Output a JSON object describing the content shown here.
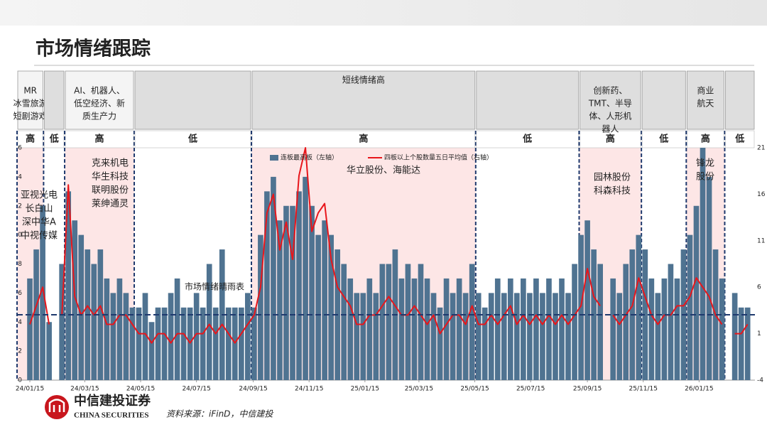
{
  "chart_data": {
    "type": "combo",
    "title": "市场情绪跟踪",
    "xlim": [
      "2024-01-01",
      "2026-03-17"
    ],
    "xticks": [
      {
        "value": "2024-01-15",
        "label": "24/01/15"
      },
      {
        "value": "2024-03-15",
        "label": "24/03/15"
      },
      {
        "value": "2024-05-15",
        "label": "24/05/15"
      },
      {
        "value": "2024-07-15",
        "label": "24/07/15"
      },
      {
        "value": "2024-09-15",
        "label": "24/09/15"
      },
      {
        "value": "2024-11-15",
        "label": "24/11/15"
      },
      {
        "value": "2025-01-15",
        "label": "25/01/15"
      },
      {
        "value": "2025-03-15",
        "label": "25/03/15"
      },
      {
        "value": "2025-05-15",
        "label": "25/05/15"
      },
      {
        "value": "2025-07-15",
        "label": "25/07/15"
      },
      {
        "value": "2025-09-15",
        "label": "25/09/15"
      },
      {
        "value": "2025-11-15",
        "label": "25/11/15"
      },
      {
        "value": "2026-01-15",
        "label": "26/01/15"
      }
    ],
    "ylim": [
      0,
      16
    ],
    "yticks": [
      0,
      2,
      4,
      6,
      8,
      10,
      12,
      14,
      16
    ],
    "y2lim": [
      -4,
      21
    ],
    "y2ticks": [
      -4,
      1,
      6,
      11,
      16,
      21
    ],
    "x": [
      "2024-01-15",
      "2024-01-22",
      "2024-01-29",
      "2024-02-05",
      "2024-02-12",
      "2024-02-19",
      "2024-02-26",
      "2024-03-04",
      "2024-03-11",
      "2024-03-18",
      "2024-03-25",
      "2024-04-01",
      "2024-04-08",
      "2024-04-15",
      "2024-04-22",
      "2024-04-29",
      "2024-05-06",
      "2024-05-13",
      "2024-05-20",
      "2024-05-27",
      "2024-06-03",
      "2024-06-10",
      "2024-06-17",
      "2024-06-24",
      "2024-07-01",
      "2024-07-08",
      "2024-07-15",
      "2024-07-22",
      "2024-07-29",
      "2024-08-05",
      "2024-08-12",
      "2024-08-19",
      "2024-08-26",
      "2024-09-02",
      "2024-09-09",
      "2024-09-16",
      "2024-09-23",
      "2024-09-30",
      "2024-10-07",
      "2024-10-14",
      "2024-10-21",
      "2024-10-28",
      "2024-11-04",
      "2024-11-11",
      "2024-11-18",
      "2024-11-25",
      "2024-12-02",
      "2024-12-09",
      "2024-12-16",
      "2024-12-23",
      "2024-12-30",
      "2025-01-06",
      "2025-01-13",
      "2025-01-20",
      "2025-01-27",
      "2025-02-03",
      "2025-02-10",
      "2025-02-17",
      "2025-02-24",
      "2025-03-03",
      "2025-03-10",
      "2025-03-17",
      "2025-03-24",
      "2025-03-31",
      "2025-04-07",
      "2025-04-14",
      "2025-04-21",
      "2025-04-28",
      "2025-05-05",
      "2025-05-12",
      "2025-05-19",
      "2025-05-26",
      "2025-06-02",
      "2025-06-09",
      "2025-06-16",
      "2025-06-23",
      "2025-06-30",
      "2025-07-07",
      "2025-07-14",
      "2025-07-21",
      "2025-07-28",
      "2025-08-04",
      "2025-08-11",
      "2025-08-18",
      "2025-08-25",
      "2025-09-01",
      "2025-09-08",
      "2025-09-15",
      "2025-09-22",
      "2025-09-29",
      "2025-10-06",
      "2025-10-13",
      "2025-10-20",
      "2025-10-27",
      "2025-11-03",
      "2025-11-10",
      "2025-11-17",
      "2025-11-24",
      "2025-12-01",
      "2025-12-08",
      "2025-12-15",
      "2025-12-22",
      "2025-12-29",
      "2026-01-05",
      "2026-01-12",
      "2026-01-19",
      "2026-01-26",
      "2026-02-02",
      "2026-02-09",
      "2026-02-16",
      "2026-02-23",
      "2026-03-02",
      "2026-03-09"
    ],
    "series": [
      {
        "name": "连板最高板（左轴）",
        "type": "bar",
        "color": "#4f7391",
        "values": [
          7,
          9,
          12,
          4,
          null,
          8,
          13,
          11,
          10,
          9,
          8,
          9,
          7,
          6,
          7,
          6,
          5,
          5,
          6,
          4,
          5,
          5,
          6,
          7,
          5,
          5,
          6,
          5,
          8,
          5,
          9,
          5,
          5,
          5,
          6,
          5,
          10,
          13,
          14,
          11,
          12,
          12,
          13,
          14,
          12,
          10,
          11,
          10,
          9,
          8,
          7,
          6,
          6,
          7,
          6,
          8,
          8,
          9,
          7,
          8,
          7,
          8,
          7,
          6,
          5,
          7,
          6,
          7,
          6,
          8,
          6,
          5,
          6,
          7,
          6,
          7,
          6,
          7,
          6,
          7,
          6,
          7,
          6,
          7,
          6,
          8,
          10,
          11,
          9,
          8,
          null,
          7,
          6,
          8,
          9,
          10,
          9,
          7,
          6,
          7,
          8,
          7,
          9,
          10,
          12,
          16,
          14,
          9,
          7,
          null,
          6,
          5,
          5
        ]
      },
      {
        "name": "四板以上个股数量五日平均值（右轴）",
        "type": "line",
        "axis": "y2",
        "color": "#e8161b",
        "values": [
          2,
          4,
          6,
          2,
          null,
          3,
          17,
          5,
          3,
          4,
          3,
          4,
          2,
          2,
          3,
          3,
          2,
          1,
          1,
          0,
          1,
          1,
          0,
          1,
          1,
          0,
          1,
          1,
          2,
          1,
          2,
          1,
          0,
          1,
          2,
          3,
          6,
          14,
          16,
          10,
          13,
          9,
          18,
          21,
          12,
          14,
          15,
          9,
          6,
          5,
          4,
          2,
          2,
          3,
          3,
          4,
          5,
          4,
          3,
          3,
          4,
          3,
          2,
          3,
          1,
          2,
          3,
          3,
          2,
          4,
          2,
          2,
          3,
          2,
          3,
          4,
          2,
          3,
          2,
          3,
          2,
          3,
          2,
          3,
          2,
          3,
          4,
          8,
          5,
          4,
          null,
          3,
          2,
          3,
          4,
          7,
          5,
          3,
          2,
          3,
          3,
          4,
          4,
          5,
          7,
          6,
          5,
          3,
          2,
          null,
          1,
          1,
          2
        ]
      }
    ],
    "threshold": {
      "value": 4.5,
      "label": "市场情绪晴雨表"
    },
    "phases": [
      {
        "start": "2024-01-01",
        "end": "2024-01-30",
        "level": "高",
        "theme": [
          "MR",
          "冰雪旅游",
          "短剧游戏"
        ]
      },
      {
        "start": "2024-01-30",
        "end": "2024-02-22",
        "level": "低"
      },
      {
        "start": "2024-02-22",
        "end": "2024-05-08",
        "level": "高",
        "theme": [
          "AI、机器人、",
          "低空经济、新",
          "质生产力"
        ]
      },
      {
        "start": "2024-05-08",
        "end": "2024-09-13",
        "level": "低"
      },
      {
        "start": "2024-09-13",
        "end": "2025-05-16",
        "level": "高",
        "theme": [
          "短线情绪高"
        ]
      },
      {
        "start": "2025-05-16",
        "end": "2025-09-06",
        "level": "低"
      },
      {
        "start": "2025-09-06",
        "end": "2025-11-13",
        "level": "高",
        "theme": [
          "创新药、",
          "TMT、半导",
          "体、人形机",
          "器人"
        ]
      },
      {
        "start": "2025-11-13",
        "end": "2026-01-01",
        "level": "低"
      },
      {
        "start": "2026-01-01",
        "end": "2026-02-12",
        "level": "高",
        "theme": [
          "商业",
          "航天"
        ]
      },
      {
        "start": "2026-02-12",
        "end": "2026-03-17",
        "level": "低"
      }
    ],
    "annotations": [
      [
        "亚视光电",
        "长白山",
        "深中华A",
        "中视传媒"
      ],
      [
        "克来机电",
        "华生科技",
        "联明股份",
        "莱绅通灵"
      ],
      [
        "华立股份、海能达"
      ],
      [
        "园林股份",
        "科森科技"
      ],
      [
        "锋龙",
        "股份"
      ]
    ]
  },
  "footer": {
    "brand": "中信建投证券",
    "brand_en": "CHINA SECURITIES",
    "source": "资料来源：iFinD，中信建投"
  }
}
